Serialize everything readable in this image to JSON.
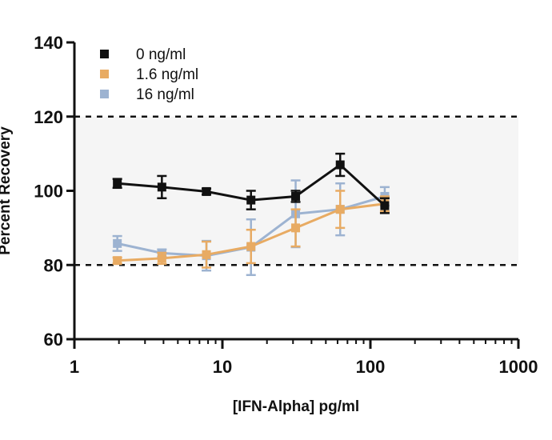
{
  "chart_data": {
    "type": "line",
    "xscale": "log",
    "xlabel": "[IFN-Alpha] pg/ml",
    "ylabel": "Percent Recovery",
    "xlim": [
      1,
      1000
    ],
    "ylim": [
      60,
      140
    ],
    "xticks": [
      1,
      10,
      100,
      1000
    ],
    "xtick_labels": [
      "1",
      "10",
      "100",
      "1000"
    ],
    "yticks": [
      60,
      80,
      100,
      120,
      140
    ],
    "ytick_labels": [
      "60",
      "80",
      "100",
      "120",
      "140"
    ],
    "acceptance_band": {
      "low": 80,
      "high": 120,
      "fill": "#f5f5f5",
      "line_style": "dashed"
    },
    "grid": false,
    "legend_position": "top-left",
    "series": [
      {
        "name": "0 ng/ml",
        "color": "#111111",
        "points": [
          {
            "x": 1.95,
            "y": 102,
            "err": 1.2
          },
          {
            "x": 3.9,
            "y": 101,
            "err": 3.0
          },
          {
            "x": 7.8,
            "y": 99.8,
            "err": 0.8
          },
          {
            "x": 15.6,
            "y": 97.5,
            "err": 2.5
          },
          {
            "x": 31.25,
            "y": 98.5,
            "err": 1.5
          },
          {
            "x": 62.5,
            "y": 107,
            "err": 3.0
          },
          {
            "x": 125,
            "y": 96,
            "err": 2.0
          }
        ]
      },
      {
        "name": "1.6 ng/ml",
        "color": "#E8AB63",
        "points": [
          {
            "x": 1.95,
            "y": 81.2,
            "err": 0.8
          },
          {
            "x": 3.9,
            "y": 81.8,
            "err": 1.5
          },
          {
            "x": 7.8,
            "y": 82.8,
            "err": 3.5
          },
          {
            "x": 15.6,
            "y": 85,
            "err": 4.5
          },
          {
            "x": 31.25,
            "y": 90,
            "err": 5.0
          },
          {
            "x": 62.5,
            "y": 95,
            "err": 5.0
          },
          {
            "x": 125,
            "y": 96.5,
            "err": 2.0
          }
        ]
      },
      {
        "name": "16 ng/ml",
        "color": "#9DB3D1",
        "points": [
          {
            "x": 1.95,
            "y": 85.8,
            "err": 2.0
          },
          {
            "x": 3.9,
            "y": 83.2,
            "err": 1.0
          },
          {
            "x": 7.8,
            "y": 82.5,
            "err": 4.0
          },
          {
            "x": 15.6,
            "y": 84.8,
            "err": 7.5
          },
          {
            "x": 31.25,
            "y": 93.8,
            "err": 9.0
          },
          {
            "x": 62.5,
            "y": 95,
            "err": 7.0
          },
          {
            "x": 125,
            "y": 98.5,
            "err": 2.5
          }
        ]
      }
    ]
  }
}
